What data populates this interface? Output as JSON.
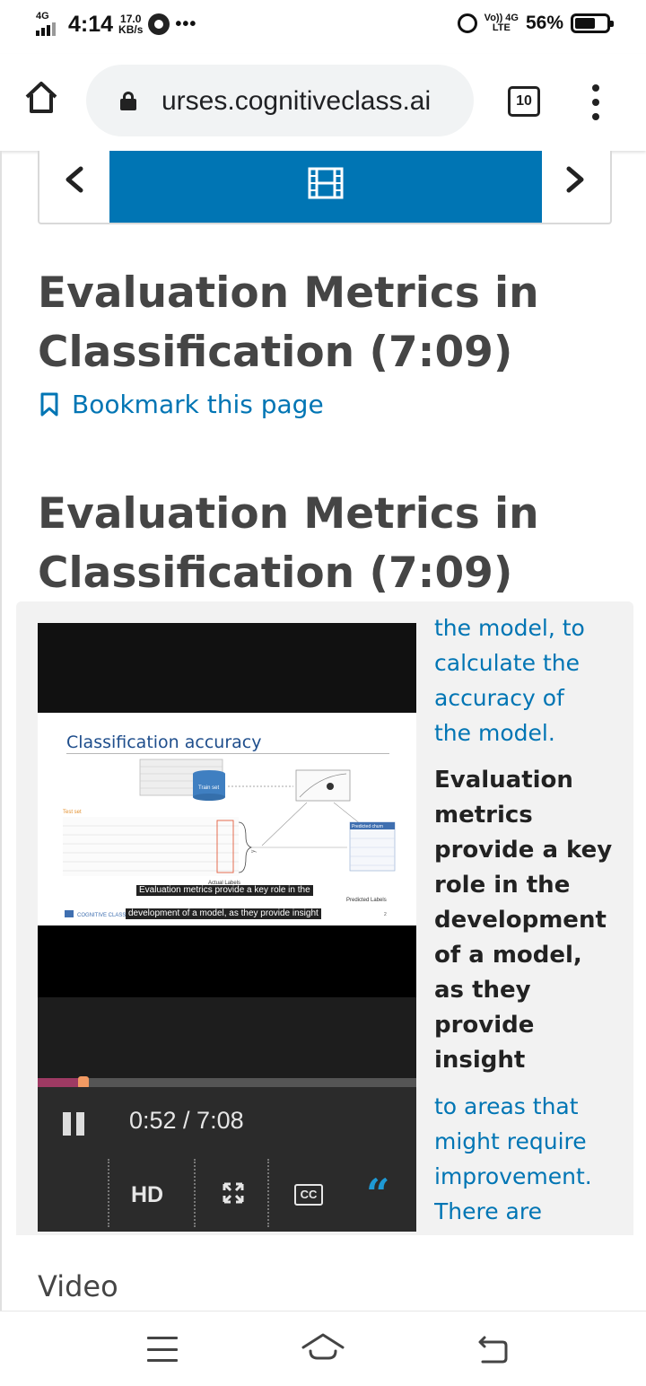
{
  "status_bar": {
    "network": "4G",
    "time": "4:14",
    "speed_value": "17.0",
    "speed_unit": "KB/s",
    "more": "•••",
    "volte_top": "Vo)) 4G",
    "volte_bottom": "LTE",
    "battery": "56%"
  },
  "browser": {
    "url": "urses.cognitiveclass.ai",
    "tab_count": "10"
  },
  "sequence_nav": {
    "prev_label": "Previous",
    "next_label": "Next",
    "active_unit_icon": "video-film-icon"
  },
  "page": {
    "unit_title": "Evaluation Metrics in Classification (7:09)",
    "bookmark_label": "Bookmark this page",
    "video_title": "Evaluation Metrics in Classification (7:09)",
    "section_label": "Video"
  },
  "video": {
    "slide_title": "Classification accuracy",
    "slide_labels": {
      "train_set": "Train set",
      "test_set": "Test set",
      "predicted_churn": "Predicted churn",
      "actual_labels": "Actual Labels",
      "predicted_labels": "Predicted Labels",
      "logo": "COGNITIVE CLASS",
      "page_num": "2"
    },
    "caption_line1": "Evaluation metrics provide a key role in the",
    "caption_line2": "development of a model, as they provide insight",
    "current_time": "0:52",
    "duration": "7:08",
    "progress_fraction": 0.122,
    "timecode": "0:52 / 7:08",
    "hd_label": "HD",
    "cc_label": "CC",
    "accent_color": "#0075b4",
    "progress_color": "#9e3a63"
  },
  "transcript": {
    "prev_lines": [
      "the model, to",
      "calculate the",
      "accuracy of",
      "the model."
    ],
    "current_lines": [
      "Evaluation",
      "metrics",
      "provide a key",
      "role in the",
      "development",
      "of a model,",
      "as they",
      "provide",
      "insight"
    ],
    "next_lines": [
      "to areas that",
      "might require",
      "improvement.",
      "There are"
    ]
  }
}
